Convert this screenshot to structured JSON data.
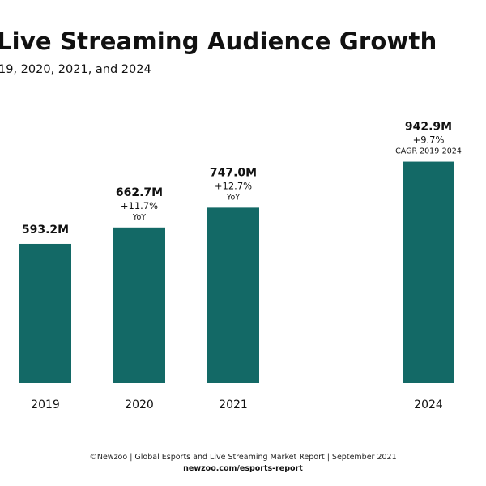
{
  "title": "Live Streaming Audience Growth",
  "subtitle": "19, 2020, 2021, and 2024",
  "colors": {
    "bar": "#136966",
    "text": "#111111"
  },
  "chart_data": {
    "type": "bar",
    "title": "Live Streaming Audience Growth",
    "subtitle": "19, 2020, 2021, and 2024",
    "categories": [
      "2019",
      "2020",
      "2021",
      "2024"
    ],
    "values": [
      593.2,
      662.7,
      747.0,
      942.9
    ],
    "unit": "M",
    "ylim": [
      0,
      1000
    ],
    "grid": false,
    "legend": "none",
    "value_labels": [
      "593.2M",
      "662.7M",
      "747.0M",
      "942.9M"
    ],
    "annotations": [
      [],
      [
        "+11.7%",
        "YoY"
      ],
      [
        "+12.7%",
        "YoY"
      ],
      [
        "+9.7%",
        "CAGR 2019-2024"
      ]
    ]
  },
  "footer": {
    "source": "©Newzoo | Global Esports and Live Streaming Market Report | September 2021",
    "url": "newzoo.com/esports-report"
  }
}
